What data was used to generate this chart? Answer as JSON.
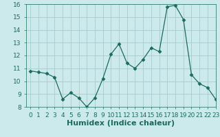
{
  "x": [
    0,
    1,
    2,
    3,
    4,
    5,
    6,
    7,
    8,
    9,
    10,
    11,
    12,
    13,
    14,
    15,
    16,
    17,
    18,
    19,
    20,
    21,
    22,
    23
  ],
  "y": [
    10.8,
    10.7,
    10.6,
    10.3,
    8.6,
    9.1,
    8.7,
    8.0,
    8.7,
    10.2,
    12.1,
    12.9,
    11.4,
    11.0,
    11.7,
    12.6,
    12.3,
    15.8,
    15.9,
    14.8,
    10.5,
    9.8,
    9.5,
    8.6
  ],
  "xlabel": "Humidex (Indice chaleur)",
  "ylim": [
    8,
    16
  ],
  "xlim": [
    -0.5,
    23
  ],
  "yticks": [
    8,
    9,
    10,
    11,
    12,
    13,
    14,
    15,
    16
  ],
  "xticks": [
    0,
    1,
    2,
    3,
    4,
    5,
    6,
    7,
    8,
    9,
    10,
    11,
    12,
    13,
    14,
    15,
    16,
    17,
    18,
    19,
    20,
    21,
    22,
    23
  ],
  "line_color": "#1a6b5a",
  "marker": "D",
  "marker_size": 2.5,
  "bg_color": "#cce9ec",
  "grid_color": "#aacfd4",
  "label_color": "#1a6b5a",
  "tick_fontsize": 6.5,
  "xlabel_fontsize": 8
}
